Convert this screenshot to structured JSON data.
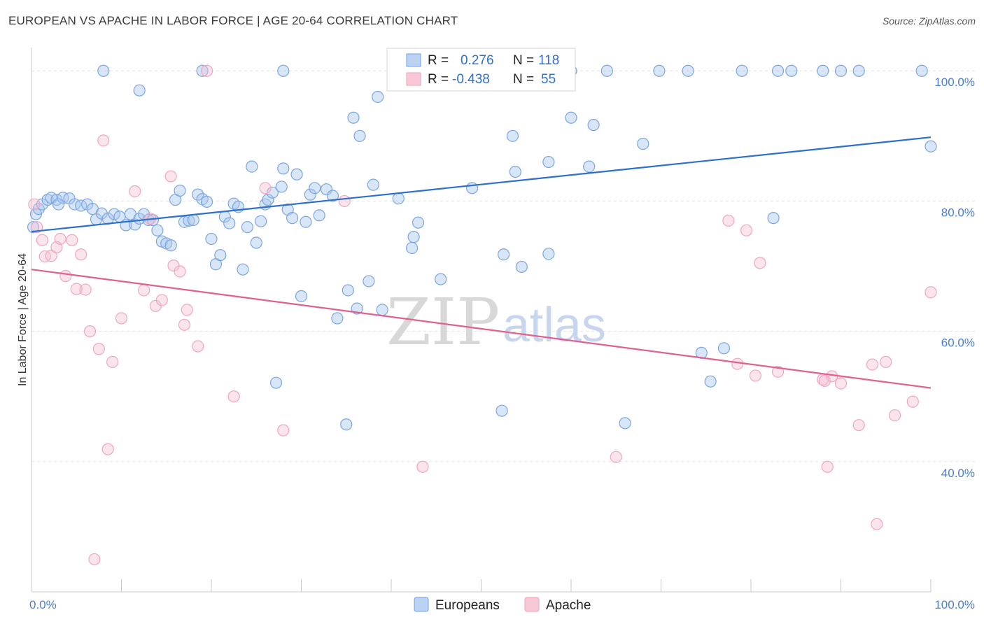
{
  "header": {
    "title": "EUROPEAN VS APACHE IN LABOR FORCE | AGE 20-64 CORRELATION CHART",
    "source": "Source: ZipAtlas.com"
  },
  "watermark": {
    "zip": "ZIP",
    "atlas": "atlas"
  },
  "legend": {
    "r_label": "R =",
    "n_label": "N =",
    "europeans": {
      "r": "0.276",
      "n": "118"
    },
    "apache": {
      "r": "-0.438",
      "n": "55"
    }
  },
  "bottom_legend": {
    "europeans": "Europeans",
    "apache": "Apache"
  },
  "chart_data": {
    "type": "scatter",
    "title": "EUROPEAN VS APACHE IN LABOR FORCE | AGE 20-64 CORRELATION CHART",
    "ylabel": "In Labor Force | Age 20-64",
    "xlim": [
      0,
      100
    ],
    "ylim": [
      20,
      104
    ],
    "x_tick_labels": [
      "0.0%",
      "100.0%"
    ],
    "y_ticks": [
      40,
      60,
      80,
      100
    ],
    "y_tick_labels": [
      "40.0%",
      "60.0%",
      "80.0%",
      "100.0%"
    ],
    "grid": true,
    "colors": {
      "europeans": "#6f9fe0",
      "europeans_line": "#2d6fd0",
      "apache": "#f0a0ba",
      "apache_line": "#e06090"
    },
    "series": [
      {
        "name": "Europeans",
        "trend": {
          "x": [
            0,
            100
          ],
          "y": [
            75.3,
            89.8
          ]
        },
        "points": [
          [
            0.2,
            76
          ],
          [
            0.5,
            78
          ],
          [
            0.8,
            78.8
          ],
          [
            1.2,
            79.5
          ],
          [
            1.8,
            80.2
          ],
          [
            2.2,
            80.5
          ],
          [
            2.8,
            80.2
          ],
          [
            3.5,
            80.5
          ],
          [
            4.2,
            80.4
          ],
          [
            4.8,
            79.5
          ],
          [
            5.5,
            79.3
          ],
          [
            6.2,
            79.5
          ],
          [
            6.8,
            78.8
          ],
          [
            7.2,
            77.2
          ],
          [
            7.8,
            78.1
          ],
          [
            8.5,
            77.3
          ],
          [
            9.2,
            78
          ],
          [
            9.8,
            77.6
          ],
          [
            10.5,
            76.3
          ],
          [
            11,
            78
          ],
          [
            11.5,
            76.4
          ],
          [
            12,
            77.3
          ],
          [
            12.5,
            78
          ],
          [
            13,
            77.1
          ],
          [
            13.5,
            77.1
          ],
          [
            14,
            75.5
          ],
          [
            14.5,
            73.8
          ],
          [
            15,
            73.5
          ],
          [
            15.5,
            73.2
          ],
          [
            16,
            80.2
          ],
          [
            16.5,
            81.6
          ],
          [
            17,
            76.8
          ],
          [
            17.5,
            77
          ],
          [
            18,
            77.1
          ],
          [
            18.5,
            81
          ],
          [
            19,
            80.3
          ],
          [
            19.5,
            79.9
          ],
          [
            20,
            74.2
          ],
          [
            20.5,
            70.3
          ],
          [
            21,
            71.7
          ],
          [
            21.5,
            77.6
          ],
          [
            22,
            76.6
          ],
          [
            22.5,
            79.6
          ],
          [
            23,
            79.1
          ],
          [
            23.5,
            69.5
          ],
          [
            24,
            76
          ],
          [
            24.5,
            85.3
          ],
          [
            25,
            73.6
          ],
          [
            25.5,
            76.9
          ],
          [
            26,
            79.5
          ],
          [
            26.3,
            80.2
          ],
          [
            26.8,
            81.3
          ],
          [
            27.2,
            52.1
          ],
          [
            27.8,
            82.2
          ],
          [
            28,
            85
          ],
          [
            28.5,
            78.7
          ],
          [
            29,
            77.4
          ],
          [
            29.5,
            84.1
          ],
          [
            30,
            65.4
          ],
          [
            30.5,
            76.8
          ],
          [
            31,
            81
          ],
          [
            31.5,
            82
          ],
          [
            32,
            77.8
          ],
          [
            32.8,
            81.8
          ],
          [
            33.5,
            80.8
          ],
          [
            34,
            62
          ],
          [
            35,
            45.7
          ],
          [
            35.2,
            66.3
          ],
          [
            35.8,
            92.8
          ],
          [
            36.2,
            63.5
          ],
          [
            36.5,
            90
          ],
          [
            37.5,
            67.7
          ],
          [
            38,
            82.5
          ],
          [
            38.5,
            96
          ],
          [
            39,
            63.3
          ],
          [
            40.5,
            100
          ],
          [
            40.8,
            80.4
          ],
          [
            42.3,
            72.8
          ],
          [
            42.5,
            74.5
          ],
          [
            43,
            76.7
          ],
          [
            45.5,
            68
          ],
          [
            48,
            100
          ],
          [
            49,
            82
          ],
          [
            52.3,
            47.8
          ],
          [
            52.5,
            71.8
          ],
          [
            53.5,
            90
          ],
          [
            53.8,
            84.5
          ],
          [
            54.5,
            69.9
          ],
          [
            57,
            100
          ],
          [
            57.5,
            71.9
          ],
          [
            57.5,
            86
          ],
          [
            60,
            92.8
          ],
          [
            62,
            85.3
          ],
          [
            62.5,
            91.7
          ],
          [
            66,
            45.9
          ],
          [
            68,
            88.8
          ],
          [
            69.8,
            100
          ],
          [
            73,
            100
          ],
          [
            74.5,
            56.7
          ],
          [
            75.5,
            52.3
          ],
          [
            77,
            57.4
          ],
          [
            79,
            100
          ],
          [
            82.5,
            77.4
          ],
          [
            83,
            100
          ],
          [
            84.5,
            100
          ],
          [
            90,
            100
          ],
          [
            92,
            100
          ],
          [
            100,
            88.4
          ],
          [
            8,
            100
          ],
          [
            12,
            97
          ],
          [
            19,
            100
          ],
          [
            28,
            100
          ],
          [
            46,
            100
          ],
          [
            60,
            100
          ],
          [
            64,
            100
          ],
          [
            88,
            100
          ],
          [
            99,
            100
          ],
          [
            3,
            79.5
          ]
        ]
      },
      {
        "name": "Apache",
        "trend": {
          "x": [
            0,
            100
          ],
          "y": [
            69.5,
            51.3
          ]
        },
        "points": [
          [
            0.3,
            79.5
          ],
          [
            0.6,
            76
          ],
          [
            1.2,
            74
          ],
          [
            1.5,
            71.5
          ],
          [
            2.2,
            71.6
          ],
          [
            2.8,
            72.9
          ],
          [
            3.2,
            74.2
          ],
          [
            3.8,
            68.5
          ],
          [
            4.5,
            74
          ],
          [
            5,
            66.5
          ],
          [
            5.5,
            71.8
          ],
          [
            6,
            66.4
          ],
          [
            6.5,
            60
          ],
          [
            7,
            25
          ],
          [
            7.5,
            57.3
          ],
          [
            8,
            89.3
          ],
          [
            8.5,
            41.9
          ],
          [
            9,
            55.3
          ],
          [
            10,
            62
          ],
          [
            11.5,
            81.5
          ],
          [
            12.5,
            66.3
          ],
          [
            13.2,
            77.3
          ],
          [
            13.8,
            63.9
          ],
          [
            14.5,
            64.8
          ],
          [
            15.5,
            83.8
          ],
          [
            15.8,
            70.1
          ],
          [
            16.5,
            69.2
          ],
          [
            17,
            61
          ],
          [
            17.3,
            63.3
          ],
          [
            18.5,
            57.7
          ],
          [
            19.5,
            100
          ],
          [
            22.5,
            50
          ],
          [
            26,
            82
          ],
          [
            28,
            44.8
          ],
          [
            34.8,
            80
          ],
          [
            43.5,
            39.2
          ],
          [
            65,
            40.7
          ],
          [
            77.5,
            77
          ],
          [
            78.5,
            55
          ],
          [
            79.5,
            75.5
          ],
          [
            80.5,
            53.2
          ],
          [
            81,
            70.5
          ],
          [
            83,
            53.8
          ],
          [
            88,
            52.6
          ],
          [
            88.5,
            39.2
          ],
          [
            89,
            53.1
          ],
          [
            90,
            52
          ],
          [
            92,
            45.6
          ],
          [
            93.5,
            54.9
          ],
          [
            94,
            30.4
          ],
          [
            95,
            55.3
          ],
          [
            96,
            47.1
          ],
          [
            98,
            49.2
          ],
          [
            100,
            66
          ],
          [
            88.2,
            52.4
          ]
        ]
      }
    ]
  }
}
